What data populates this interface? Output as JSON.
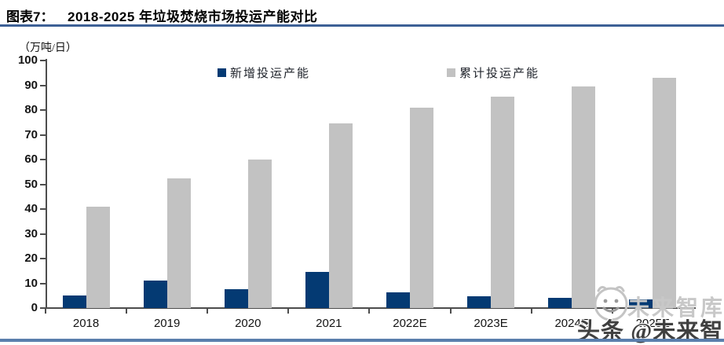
{
  "header": {
    "figure_label": "图表7：",
    "title": "2018-2025 年垃圾焚烧市场投运产能对比"
  },
  "chart": {
    "unit_label": "（万吨/日）"
  },
  "chart_data": {
    "type": "bar",
    "title": "2018-2025 年垃圾焚烧市场投运产能对比",
    "xlabel": "",
    "ylabel": "（万吨/日）",
    "categories": [
      "2018",
      "2019",
      "2020",
      "2021",
      "2022E",
      "2023E",
      "2024E",
      "2025E"
    ],
    "series": [
      {
        "name": "新增投运产能",
        "color": "#043a73",
        "values": [
          5,
          11,
          7.5,
          14.7,
          6.3,
          4.7,
          4,
          3.5
        ]
      },
      {
        "name": "累计投运产能",
        "color": "#c2c2c2",
        "values": [
          41,
          52.5,
          60,
          74.5,
          81,
          85.5,
          89.5,
          93
        ]
      }
    ],
    "ylim": [
      0,
      100
    ],
    "ytick_step": 10,
    "grid": false,
    "legend_position": "top"
  },
  "watermark": {
    "logo": "smiley-face-icon",
    "ghost_text": "未来智库",
    "main_text": "头条 @未来智库"
  },
  "colors": {
    "bar_new": "#043a73",
    "bar_cumulative": "#c2c2c2",
    "axis": "#4d4d4d",
    "title_rule": "#3d6096",
    "bottom_rule": "#5b7fad",
    "watermark_ghost": "#c8c8c8",
    "watermark_main": "#404040"
  }
}
